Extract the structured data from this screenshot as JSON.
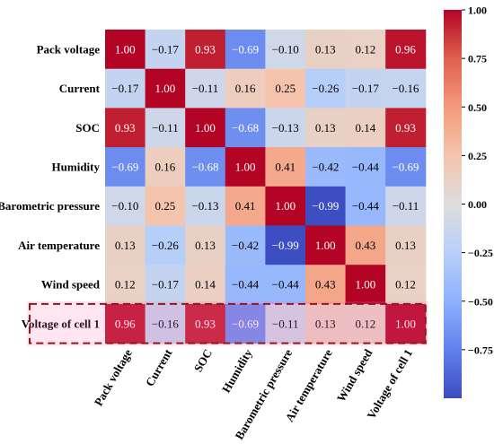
{
  "chart_data": {
    "type": "heatmap",
    "variables": [
      "Pack voltage",
      "Current",
      "SOC",
      "Humidity",
      "Barometric pressure",
      "Air temperature",
      "Wind speed",
      "Voltage of cell 1"
    ],
    "values": [
      [
        1.0,
        -0.17,
        0.93,
        -0.69,
        -0.1,
        0.13,
        0.12,
        0.96
      ],
      [
        -0.17,
        1.0,
        -0.11,
        0.16,
        0.25,
        -0.26,
        -0.17,
        -0.16
      ],
      [
        0.93,
        -0.11,
        1.0,
        -0.68,
        -0.13,
        0.13,
        0.14,
        0.93
      ],
      [
        -0.69,
        0.16,
        -0.68,
        1.0,
        0.41,
        -0.42,
        -0.44,
        -0.69
      ],
      [
        -0.1,
        0.25,
        -0.13,
        0.41,
        1.0,
        -0.99,
        -0.44,
        -0.11
      ],
      [
        0.13,
        -0.26,
        0.13,
        -0.42,
        -0.99,
        1.0,
        0.43,
        0.13
      ],
      [
        0.12,
        -0.17,
        0.14,
        -0.44,
        -0.44,
        0.43,
        1.0,
        0.12
      ],
      [
        0.96,
        -0.16,
        0.93,
        -0.69,
        -0.11,
        0.13,
        0.12,
        1.0
      ]
    ],
    "colorbar": {
      "range": [
        -1.0,
        1.0
      ],
      "ticks": [
        -0.75,
        -0.5,
        -0.25,
        0.0,
        0.25,
        0.5,
        0.75,
        1.0
      ],
      "tick_labels": [
        "−0.75",
        "−0.50",
        "−0.25",
        "0.00",
        "0.25",
        "0.50",
        "0.75",
        "1.00"
      ],
      "colormap": "coolwarm"
    },
    "highlight": {
      "row": "Voltage of cell 1",
      "style": "dashed",
      "color": "#8b1a1a"
    },
    "title": "",
    "xlabel": "",
    "ylabel": ""
  }
}
